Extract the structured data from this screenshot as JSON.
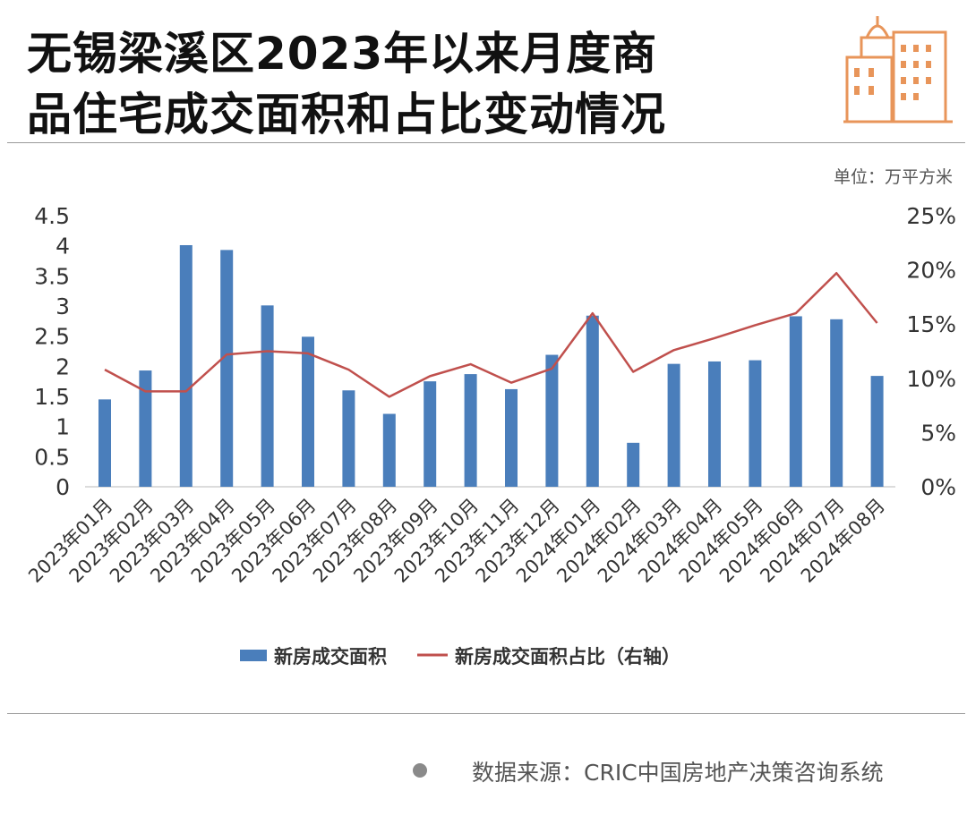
{
  "title": {
    "line1": "无锡梁溪区2023年以来月度商",
    "line2": "品住宅成交面积和占比变动情况"
  },
  "unit_label": "单位：万平方米",
  "source": "数据来源：CRIC中国房地产决策咨询系统",
  "logo_icon": "city-buildings-icon",
  "colors": {
    "bar": "#4a7ebb",
    "line": "#c0504d",
    "logo": "#e8955a",
    "axis": "#d0d0d0"
  },
  "chart_data": {
    "type": "bar",
    "categories": [
      "2023年01月",
      "2023年02月",
      "2023年03月",
      "2023年04月",
      "2023年05月",
      "2023年06月",
      "2023年07月",
      "2023年08月",
      "2023年09月",
      "2023年10月",
      "2023年11月",
      "2023年12月",
      "2024年01月",
      "2024年02月",
      "2024年03月",
      "2024年04月",
      "2024年05月",
      "2024年06月",
      "2024年07月",
      "2024年08月"
    ],
    "series": [
      {
        "name": "新房成交面积",
        "type": "bar",
        "axis": "left",
        "values": [
          1.45,
          1.93,
          4.01,
          3.93,
          3.01,
          2.49,
          1.6,
          1.21,
          1.75,
          1.87,
          1.62,
          2.19,
          2.84,
          0.73,
          2.04,
          2.08,
          2.1,
          2.83,
          2.78,
          1.84
        ]
      },
      {
        "name": "新房成交面积占比（右轴）",
        "type": "line",
        "axis": "right",
        "values": [
          10.8,
          8.8,
          8.8,
          12.2,
          12.5,
          12.3,
          10.8,
          8.3,
          10.2,
          11.3,
          9.6,
          10.9,
          16.0,
          10.6,
          12.6,
          13.7,
          14.9,
          16.0,
          19.7,
          15.1
        ]
      }
    ],
    "left_axis": {
      "min": 0,
      "max": 4.5,
      "ticks": [
        0,
        0.5,
        1,
        1.5,
        2,
        2.5,
        3,
        3.5,
        4,
        4.5
      ],
      "tick_labels": [
        "0",
        "0.5",
        "1",
        "1.5",
        "2",
        "2.5",
        "3",
        "3.5",
        "4",
        "4.5"
      ]
    },
    "right_axis": {
      "min": 0,
      "max": 25,
      "ticks": [
        0,
        5,
        10,
        15,
        20,
        25
      ],
      "tick_labels": [
        "0%",
        "5%",
        "10%",
        "15%",
        "20%",
        "25%"
      ]
    },
    "grid": false,
    "legend_position": "bottom"
  }
}
